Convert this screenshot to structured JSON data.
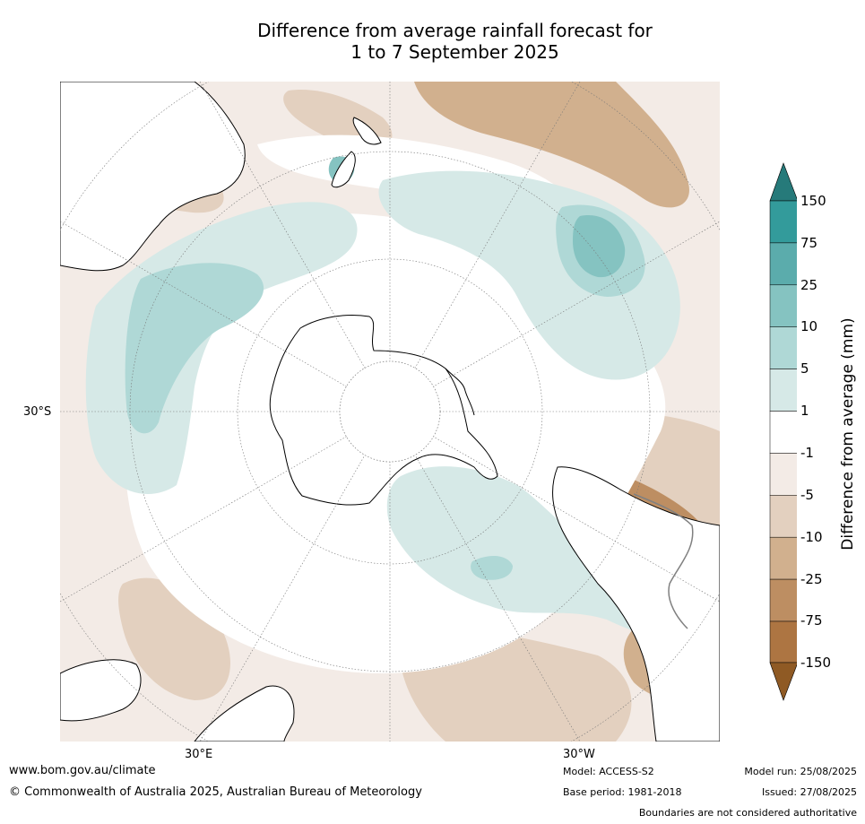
{
  "title_line1": "Difference from average rainfall forecast for",
  "title_line2": "1 to 7 September 2025",
  "map": {
    "projection": "south-polar",
    "lat_label": "30°S",
    "lon_labels": [
      "30°E",
      "30°W"
    ],
    "colors": {
      "land_ice": "#ffffff",
      "coast": "#000000",
      "border": "#808080",
      "grid": "#777777"
    }
  },
  "colorbar": {
    "title": "Difference from average (mm)",
    "ticks": [
      "150",
      "75",
      "25",
      "10",
      "5",
      "1",
      "-1",
      "-5",
      "-10",
      "-25",
      "-75",
      "-150"
    ],
    "colors": [
      "#267a7a",
      "#339b9b",
      "#5bacac",
      "#85c3c1",
      "#afd8d6",
      "#d6e9e7",
      "#ffffff",
      "#f3ebe6",
      "#e3d0bf",
      "#d1b08e",
      "#bd8e62",
      "#ad7542",
      "#8f5a24"
    ]
  },
  "footer": {
    "url": "www.bom.gov.au/climate",
    "copyright": "© Commonwealth of Australia 2025, Australian Bureau of Meteorology",
    "model": "Model: ACCESS-S2",
    "base_period": "Base period: 1981-2018",
    "model_run": "Model run: 25/08/2025",
    "issued": "Issued: 27/08/2025",
    "disclaimer": "Boundaries are not considered authoritative"
  }
}
